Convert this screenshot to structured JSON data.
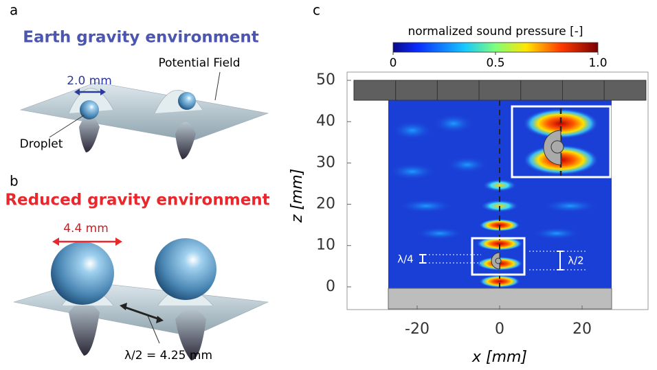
{
  "panel_a": {
    "label": "a",
    "title": "Earth gravity environment",
    "spacing": "2.0 mm",
    "field_label": "Potential Field",
    "droplet_label": "Droplet"
  },
  "panel_b": {
    "label": "b",
    "title": "Reduced gravity environment",
    "spacing": "4.4 mm",
    "wavelength": "λ/2 = 4.25 mm"
  },
  "panel_c": {
    "label": "c",
    "colorbar": {
      "title": "normalized sound pressure [-]",
      "lim": [
        0,
        1
      ],
      "ticks": [
        0,
        0.5,
        {
          "value": 1,
          "label": "1.0"
        }
      ]
    },
    "xlabel": "x [mm]",
    "ylabel": "z [mm]",
    "xlim": [
      -37,
      36
    ],
    "ylim": [
      -5.5,
      52
    ],
    "xticks": [
      -20,
      0,
      20
    ],
    "yticks": [
      0,
      10,
      20,
      30,
      40,
      50
    ],
    "quarter_label": "λ/4",
    "half_label": "λ/2"
  }
}
